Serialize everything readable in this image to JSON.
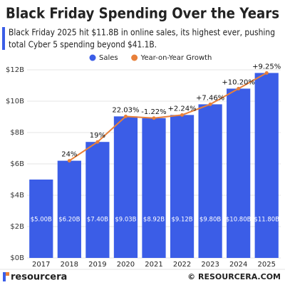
{
  "chart_data": {
    "type": "bar",
    "title": "Black Friday Spending Over the Years",
    "subtitle": [
      "Black Friday 2025 hit $11.8B in online sales, its highest ever, pushing",
      "total Cyber 5 spending beyond $41.1B."
    ],
    "categories": [
      "2017",
      "2018",
      "2019",
      "2020",
      "2021",
      "2022",
      "2023",
      "2024",
      "2025"
    ],
    "series": [
      {
        "name": "Sales",
        "color": "#3b5de7",
        "values": [
          5.0,
          6.2,
          7.4,
          9.03,
          8.92,
          9.12,
          9.8,
          10.8,
          11.8
        ],
        "value_labels": [
          "$5.00B",
          "$6.20B",
          "$7.40B",
          "$9.03B",
          "$8.92B",
          "$9.12B",
          "$9.80B",
          "$10.80B",
          "$11.80B"
        ]
      },
      {
        "name": "Year-on-Year Growth",
        "color": "#e8803a",
        "values": [
          null,
          24,
          19,
          22.03,
          -1.22,
          2.24,
          7.46,
          10.2,
          9.25
        ],
        "value_labels": [
          null,
          "24%",
          "19%",
          "22.03%",
          "-1.22%",
          "+2.24%",
          "+7.46%",
          "+10.20%",
          "+9.25%"
        ]
      }
    ],
    "ylim": [
      0,
      12
    ],
    "yticks": [
      {
        "value": 0,
        "label": "$0B"
      },
      {
        "value": 2,
        "label": "$2B"
      },
      {
        "value": 4,
        "label": "$4B"
      },
      {
        "value": 6,
        "label": "$6B"
      },
      {
        "value": 8,
        "label": "$8B"
      },
      {
        "value": 10,
        "label": "$10B"
      },
      {
        "value": 12,
        "label": "$12B"
      }
    ],
    "grid": true,
    "legend": "top",
    "brand": "resourcera",
    "source": "© RESOURCERA.COM"
  }
}
